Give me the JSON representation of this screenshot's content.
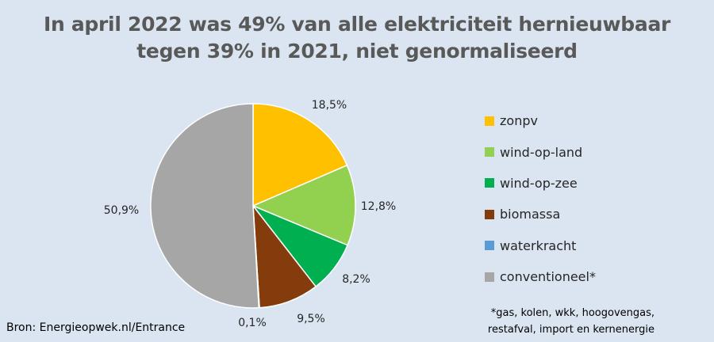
{
  "chart_data": {
    "type": "pie",
    "title_line1": "In april 2022 was 49% van alle elektriciteit hernieuwbaar",
    "title_line2": "tegen 39% in 2021, niet genormaliseerd",
    "categories": [
      "zonpv",
      "wind-op-land",
      "wind-op-zee",
      "biomassa",
      "waterkracht",
      "conventioneel*"
    ],
    "values": [
      18.5,
      12.8,
      8.2,
      9.5,
      0.1,
      50.9
    ],
    "labels": [
      "18,5%",
      "12,8%",
      "8,2%",
      "9,5%",
      "0,1%",
      "50,9%"
    ],
    "colors": [
      "#ffc000",
      "#92d050",
      "#00b050",
      "#843c0c",
      "#5b9bd5",
      "#a6a6a6"
    ],
    "legend_position": "right"
  },
  "source": "Bron: Energieopwek.nl/Entrance",
  "footnote_line1": "*gas, kolen, wkk, hoogovengas,",
  "footnote_line2": "restafval, import en kernenergie"
}
